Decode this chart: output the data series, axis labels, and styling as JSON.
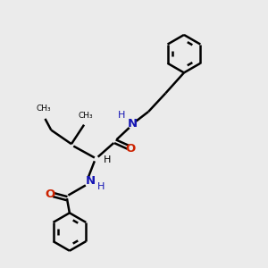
{
  "bg_color": "#ebebeb",
  "bond_color": "#000000",
  "nitrogen_color": "#1414b4",
  "oxygen_color": "#cc2200",
  "line_width": 1.8,
  "figsize": [
    3.0,
    3.0
  ],
  "dpi": 100,
  "xlim": [
    0,
    10
  ],
  "ylim": [
    0,
    10
  ]
}
